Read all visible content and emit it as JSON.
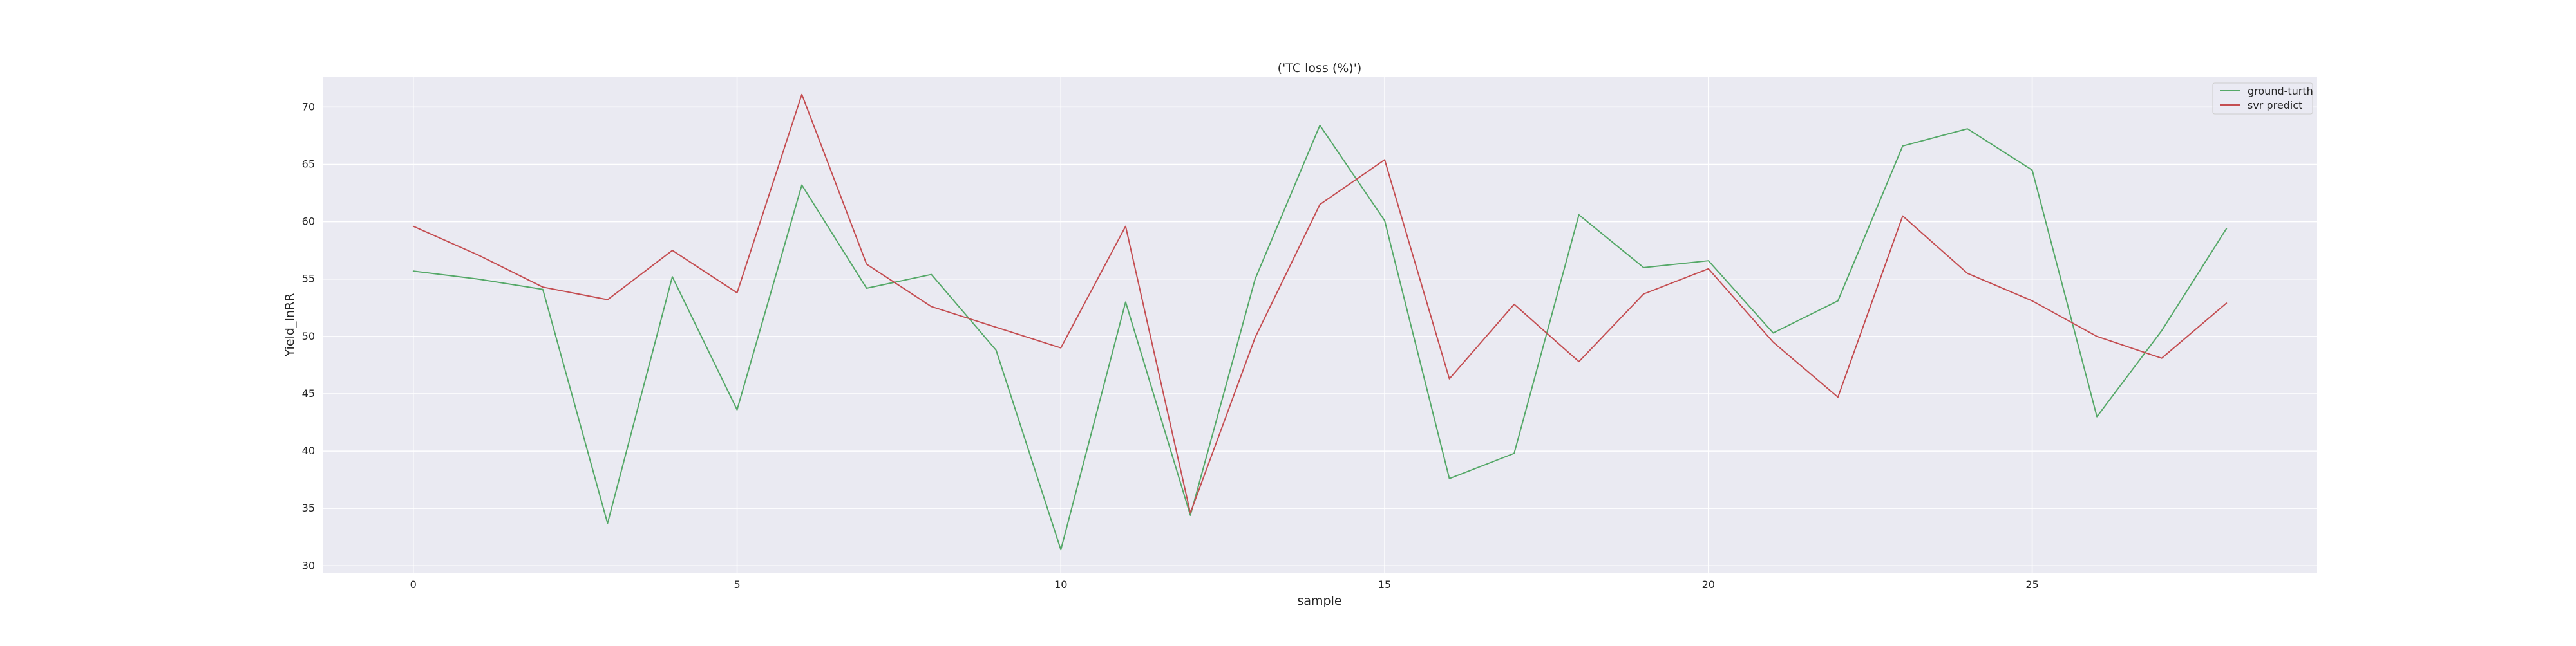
{
  "chart_data": {
    "type": "line",
    "title": "('TC loss (%)')",
    "xlabel": "sample",
    "ylabel": "Yield_InRR",
    "xlim": [
      -1.4,
      29.4
    ],
    "ylim": [
      29.4,
      72.6
    ],
    "xticks": [
      0,
      5,
      10,
      15,
      20,
      25
    ],
    "yticks": [
      30,
      35,
      40,
      45,
      50,
      55,
      60,
      65,
      70
    ],
    "grid": true,
    "legend_position": "top-right",
    "x": [
      0,
      1,
      2,
      3,
      4,
      5,
      6,
      7,
      8,
      9,
      10,
      11,
      12,
      13,
      14,
      15,
      16,
      17,
      18,
      19,
      20,
      21,
      22,
      23,
      24,
      25,
      26,
      27,
      28
    ],
    "series": [
      {
        "name": "ground-turth",
        "color": "#55a868",
        "values": [
          55.7,
          55.0,
          54.1,
          33.7,
          55.2,
          43.6,
          63.2,
          54.2,
          55.4,
          48.8,
          31.4,
          53.0,
          34.4,
          55.0,
          68.4,
          60.1,
          37.6,
          39.8,
          60.6,
          56.0,
          56.6,
          50.3,
          53.1,
          66.6,
          68.1,
          64.5,
          43.0,
          50.5,
          59.4
        ]
      },
      {
        "name": "svr predict",
        "color": "#c44e52",
        "values": [
          59.6,
          57.1,
          54.3,
          53.2,
          57.5,
          53.8,
          71.1,
          56.3,
          52.6,
          50.8,
          49.0,
          59.6,
          34.6,
          49.9,
          61.5,
          65.4,
          46.3,
          52.8,
          47.8,
          53.7,
          55.9,
          49.5,
          44.7,
          60.5,
          55.5,
          53.1,
          50.0,
          48.1,
          52.9
        ]
      }
    ]
  },
  "colors": {
    "plot_background": "#eaeaf2",
    "grid": "#ffffff",
    "text": "#262626"
  }
}
